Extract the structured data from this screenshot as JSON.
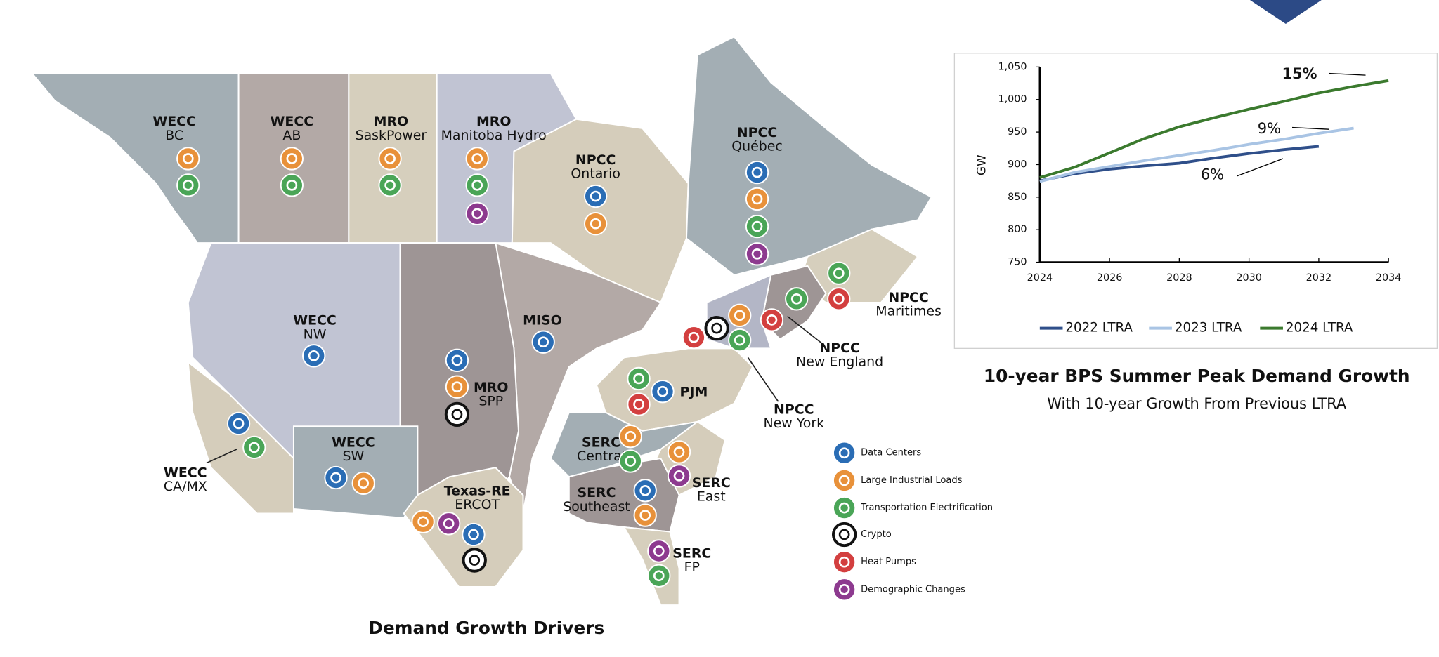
{
  "map": {
    "title": "Demand Growth Drivers",
    "legend": [
      {
        "label": "Data Centers",
        "color": "#2a6db5"
      },
      {
        "label": "Large Industrial Loads",
        "color": "#e8913a"
      },
      {
        "label": "Transportation Electrification",
        "color": "#4aa557"
      },
      {
        "label": "Crypto",
        "color": "#111111",
        "fill": "#ffffff"
      },
      {
        "label": "Heat Pumps",
        "color": "#d33f3f"
      },
      {
        "label": "Demographic Changes",
        "color": "#8d3a8f"
      }
    ],
    "regions": [
      {
        "name": "WECC",
        "subname": "BC",
        "drivers": [
          "Large Industrial Loads",
          "Transportation Electrification"
        ]
      },
      {
        "name": "WECC",
        "subname": "AB",
        "drivers": [
          "Large Industrial Loads",
          "Transportation Electrification"
        ]
      },
      {
        "name": "MRO",
        "subname": "SaskPower",
        "drivers": [
          "Large Industrial Loads",
          "Transportation Electrification"
        ]
      },
      {
        "name": "MRO",
        "subname": "Manitoba Hydro",
        "drivers": [
          "Large Industrial Loads",
          "Transportation Electrification",
          "Demographic Changes"
        ]
      },
      {
        "name": "NPCC",
        "subname": "Ontario",
        "drivers": [
          "Data Centers",
          "Large Industrial Loads"
        ]
      },
      {
        "name": "NPCC",
        "subname": "Québec",
        "drivers": [
          "Data Centers",
          "Large Industrial Loads",
          "Transportation Electrification",
          "Demographic Changes"
        ]
      },
      {
        "name": "NPCC",
        "subname": "Maritimes",
        "drivers": [
          "Transportation Electrification",
          "Heat Pumps"
        ]
      },
      {
        "name": "NPCC",
        "subname": "New England",
        "drivers": [
          "Transportation Electrification",
          "Heat Pumps"
        ]
      },
      {
        "name": "NPCC",
        "subname": "New York",
        "drivers": [
          "Heat Pumps",
          "Crypto",
          "Large Industrial Loads",
          "Transportation Electrification"
        ]
      },
      {
        "name": "WECC",
        "subname": "NW",
        "drivers": [
          "Data Centers"
        ]
      },
      {
        "name": "MISO",
        "drivers": [
          "Data Centers"
        ]
      },
      {
        "name": "MRO",
        "subname": "SPP",
        "drivers": [
          "Data Centers",
          "Large Industrial Loads",
          "Crypto"
        ]
      },
      {
        "name": "PJM",
        "drivers": [
          "Transportation Electrification",
          "Heat Pumps",
          "Data Centers"
        ]
      },
      {
        "name": "WECC",
        "subname": "CA/MX",
        "drivers": [
          "Data Centers",
          "Transportation Electrification"
        ]
      },
      {
        "name": "WECC",
        "subname": "SW",
        "drivers": [
          "Data Centers",
          "Large Industrial Loads"
        ]
      },
      {
        "name": "Texas-RE",
        "subname": "ERCOT",
        "drivers": [
          "Large Industrial Loads",
          "Demographic Changes",
          "Data Centers",
          "Crypto"
        ]
      },
      {
        "name": "SERC",
        "subname": "Central",
        "drivers": [
          "Large Industrial Loads",
          "Transportation Electrification"
        ]
      },
      {
        "name": "SERC",
        "subname": "East",
        "drivers": [
          "Large Industrial Loads",
          "Demographic Changes"
        ]
      },
      {
        "name": "SERC",
        "subname": "Southeast",
        "drivers": [
          "Data Centers",
          "Large Industrial Loads"
        ]
      },
      {
        "name": "SERC",
        "subname": "FP",
        "drivers": [
          "Demographic Changes",
          "Transportation Electrification"
        ]
      }
    ]
  },
  "chart_data": {
    "type": "line",
    "title": "10-year BPS Summer Peak Demand Growth",
    "subtitle": "With 10-year Growth From Previous LTRA",
    "y_label": "GW",
    "x": [
      2024,
      2025,
      2026,
      2027,
      2028,
      2029,
      2030,
      2031,
      2032,
      2033,
      2034
    ],
    "xlim": [
      2024,
      2034
    ],
    "xticks": [
      2024,
      2026,
      2028,
      2030,
      2032,
      2034
    ],
    "ylim": [
      750,
      1050
    ],
    "yticks": [
      750,
      800,
      850,
      900,
      950,
      {
        "value": 1000,
        "label": "1,000"
      },
      {
        "value": 1050,
        "label": "1,050"
      }
    ],
    "grid": false,
    "legend": "bottom",
    "series": [
      {
        "name": "2022 LTRA",
        "color": "#2f4f8a",
        "values": [
          875,
          886,
          893,
          898,
          902,
          910,
          917,
          923,
          928,
          null,
          null
        ]
      },
      {
        "name": "2023 LTRA",
        "color": "#a9c4e4",
        "values": [
          874,
          888,
          897,
          906,
          914,
          922,
          931,
          939,
          948,
          956,
          null
        ]
      },
      {
        "name": "2024 LTRA",
        "color": "#3b7a2e",
        "values": [
          880,
          896,
          918,
          940,
          958,
          972,
          985,
          997,
          1010,
          1020,
          1029
        ]
      }
    ],
    "annotations": [
      {
        "text": "15%"
      },
      {
        "text": "9%"
      },
      {
        "text": "6%"
      }
    ]
  }
}
